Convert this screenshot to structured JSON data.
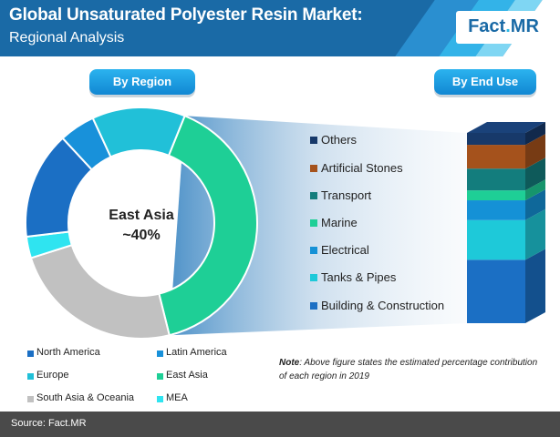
{
  "header": {
    "title": "Global Unsaturated Polyester Resin Market:",
    "subtitle": "Regional Analysis",
    "logo_main": "Fact",
    "logo_dot": ".",
    "logo_suffix": "MR"
  },
  "pills": {
    "by_region": "By Region",
    "by_end_use": "By End Use"
  },
  "center_label": {
    "line1": "East Asia",
    "line2": "~40%"
  },
  "note": {
    "prefix": "Note",
    "text": ": Above figure states the estimated percentage contribution of each region in 2019"
  },
  "footer": {
    "source": "Source: Fact.MR"
  },
  "colors": {
    "header_bg": "#1a6aa6",
    "stripe_1": "#2a8fd0",
    "stripe_2": "#33b3e8",
    "stripe_3": "#7fd6f3",
    "footer_bg": "#4a4a4a"
  },
  "chart_data": [
    {
      "type": "pie",
      "subtype": "donut",
      "title": "By Region",
      "categories": [
        "East Asia",
        "South Asia & Oceania",
        "MEA",
        "North America",
        "Latin America",
        "Europe"
      ],
      "values": [
        40,
        24,
        3,
        15,
        5,
        13
      ],
      "colors": [
        "#1ecf96",
        "#c1c1c1",
        "#2fe4f0",
        "#1b6fc4",
        "#1891da",
        "#21c0d8"
      ],
      "legend": {
        "position": "bottom",
        "items": [
          {
            "label": "North America",
            "color": "#1b6fc4"
          },
          {
            "label": "Latin America",
            "color": "#1891da"
          },
          {
            "label": "Europe",
            "color": "#21c0d8"
          },
          {
            "label": "East Asia",
            "color": "#1ecf96"
          },
          {
            "label": "South Asia & Oceania",
            "color": "#c1c1c1"
          },
          {
            "label": "MEA",
            "color": "#2fe4f0"
          }
        ]
      }
    },
    {
      "type": "bar",
      "subtype": "stacked",
      "title": "By End Use",
      "categories": [
        "Building & Construction",
        "Tanks & Pipes",
        "Electrical",
        "Marine",
        "Transport",
        "Artificial Stones",
        "Others"
      ],
      "values": [
        32,
        20,
        10,
        5,
        11,
        12,
        6
      ],
      "colors": [
        "#1b6fc4",
        "#1ec9d9",
        "#1591d6",
        "#1ecf96",
        "#137d7d",
        "#a5521c",
        "#17396a"
      ]
    }
  ]
}
